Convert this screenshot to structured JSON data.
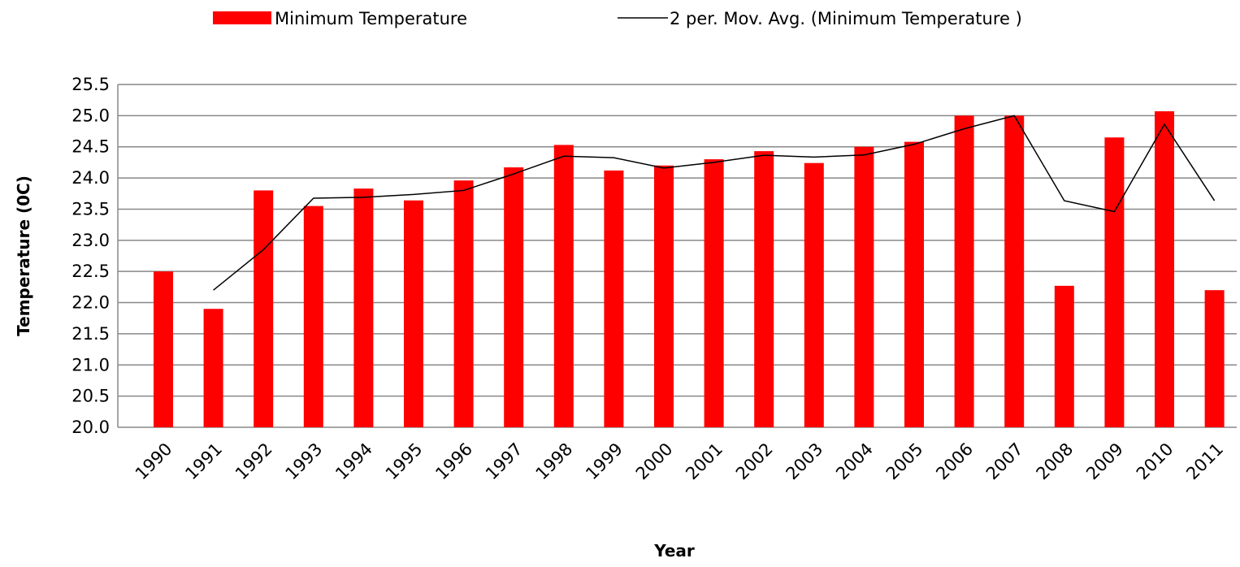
{
  "chart_data": {
    "type": "bar",
    "x_label": "Year",
    "y_label": "Temperature (0C)",
    "categories": [
      "1990",
      "1991",
      "1992",
      "1993",
      "1994",
      "1995",
      "1996",
      "1997",
      "1998",
      "1999",
      "2000",
      "2001",
      "2002",
      "2003",
      "2004",
      "2005",
      "2006",
      "2007",
      "2008",
      "2009",
      "2010",
      "2011"
    ],
    "series": [
      {
        "name": "Minimum Temperature",
        "color": "#ff0000",
        "type": "bar",
        "values": [
          22.5,
          21.9,
          23.8,
          23.55,
          23.83,
          23.64,
          23.96,
          24.17,
          24.53,
          24.12,
          24.2,
          24.3,
          24.43,
          24.24,
          24.5,
          24.58,
          25.0,
          25.0,
          22.27,
          24.65,
          25.07,
          22.2
        ]
      },
      {
        "name": "2 per. Mov. Avg. (Minimum Temperature )",
        "color": "#000000",
        "type": "line",
        "values": [
          null,
          22.2,
          22.85,
          23.675,
          23.69,
          23.735,
          23.8,
          24.065,
          24.35,
          24.325,
          24.16,
          24.25,
          24.365,
          24.335,
          24.37,
          24.54,
          24.79,
          25.0,
          23.635,
          23.46,
          24.86,
          23.635
        ]
      }
    ],
    "ylim": [
      20.0,
      25.5
    ],
    "yticks": [
      {
        "value": 20,
        "label": "20.0"
      },
      20.5,
      {
        "value": 21,
        "label": "21.0"
      },
      21.5,
      {
        "value": 22,
        "label": "22.0"
      },
      22.5,
      {
        "value": 23,
        "label": "23.0"
      },
      23.5,
      {
        "value": 24,
        "label": "24.0"
      },
      24.5,
      {
        "value": 25,
        "label": "25.0"
      },
      25.5
    ],
    "grid": true,
    "legend": "top"
  }
}
